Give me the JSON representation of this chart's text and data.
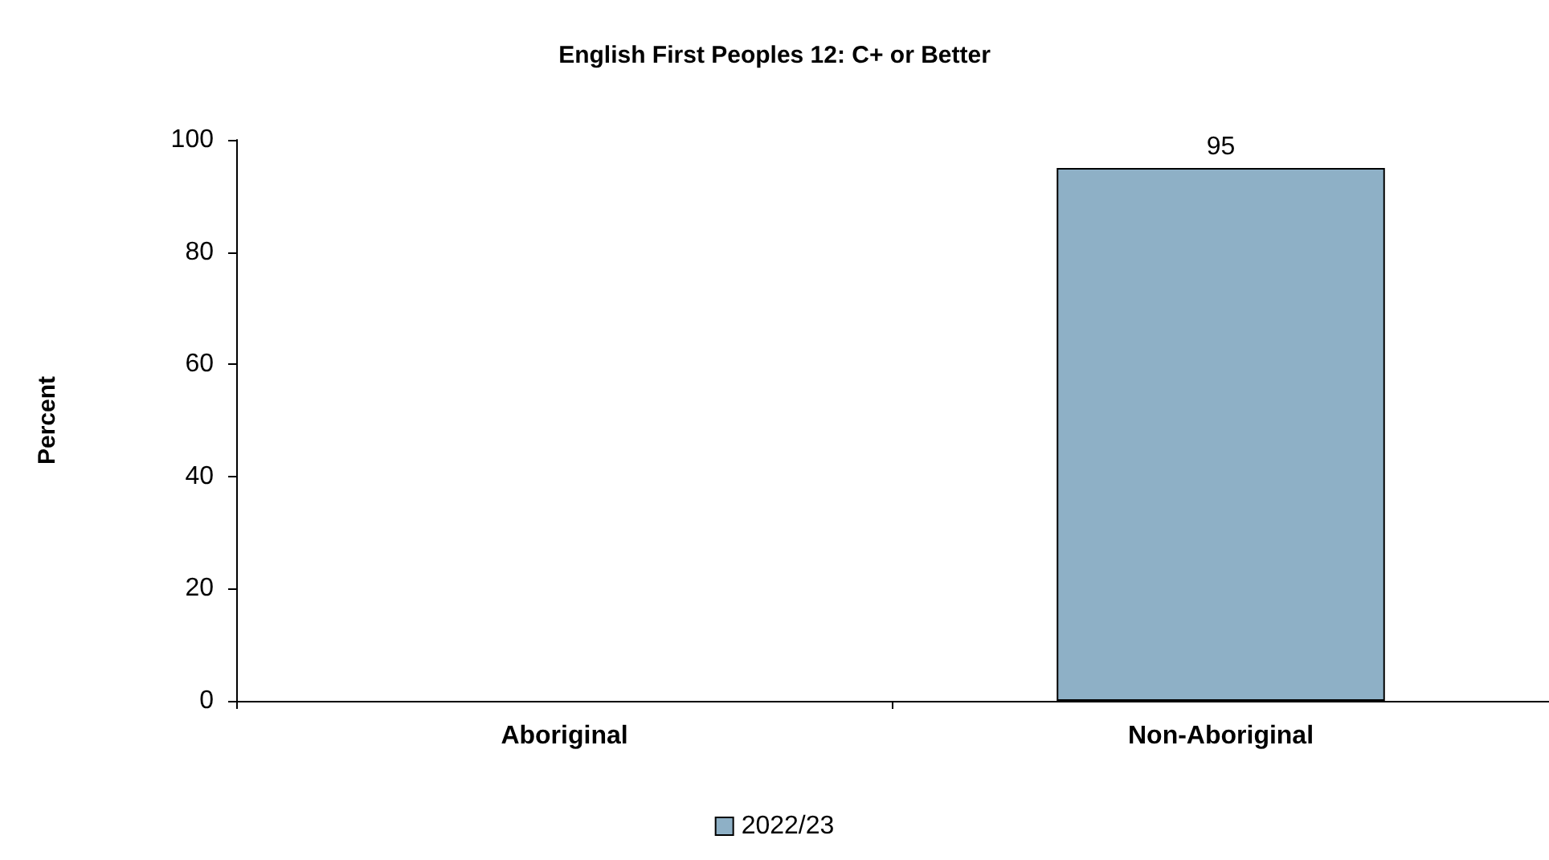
{
  "chart_data": {
    "type": "bar",
    "title": "English First Peoples 12: C+ or Better",
    "ylabel": "Percent",
    "categories": [
      "Aboriginal",
      "Non-Aboriginal"
    ],
    "series": [
      {
        "name": "2022/23",
        "color": "#8eb0c6",
        "values": [
          null,
          95
        ]
      }
    ],
    "ylim": [
      0,
      100
    ],
    "yticks": [
      0,
      20,
      40,
      60,
      80,
      100
    ],
    "grid": false,
    "legend": "bottom",
    "data_labels": true
  }
}
